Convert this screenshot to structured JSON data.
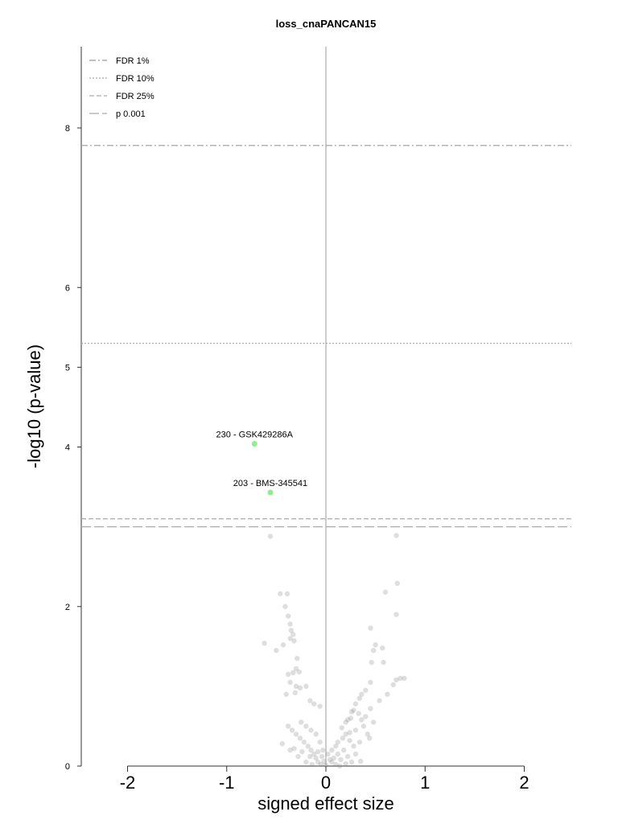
{
  "chart_data": {
    "type": "scatter",
    "title": "loss_cnaPANCAN15",
    "xlabel": "signed effect size",
    "ylabel": "-log10 (p-value)",
    "xlim": [
      -2.5,
      2.5
    ],
    "ylim": [
      0,
      9
    ],
    "xticks": [
      -2,
      -1,
      0,
      1,
      2
    ],
    "xtick_labels": [
      "-2",
      "-1",
      "0",
      "1",
      "2"
    ],
    "yticks": [
      0,
      2,
      4,
      5,
      6,
      8
    ],
    "ytick_labels": [
      "0",
      "2",
      "4",
      "5",
      "6",
      "8"
    ],
    "zero_line": 0,
    "legend_position": "top-left",
    "thresholds": [
      {
        "label": "FDR 1%",
        "y": 7.78,
        "dash": "8,3,2,3",
        "color": "#999999"
      },
      {
        "label": "FDR 10%",
        "y": 5.3,
        "dash": "2,2",
        "color": "#aaaaaa"
      },
      {
        "label": "FDR 25%",
        "y": 3.1,
        "dash": "6,3",
        "color": "#aaaaaa"
      },
      {
        "label": "p 0.001",
        "y": 3.0,
        "dash": "12,4",
        "color": "#aaaaaa"
      }
    ],
    "highlighted_points": [
      {
        "x": -0.72,
        "y": 4.04,
        "label": "230 - GSK429286A",
        "color": "#90ee90"
      },
      {
        "x": -0.56,
        "y": 3.43,
        "label": "203 - BMS-345541",
        "color": "#90ee90"
      }
    ],
    "background_points": [
      [
        -0.56,
        2.88
      ],
      [
        0.71,
        2.89
      ],
      [
        0.72,
        2.29
      ],
      [
        0.6,
        2.18
      ],
      [
        0.71,
        1.9
      ],
      [
        -0.46,
        2.16
      ],
      [
        -0.39,
        2.16
      ],
      [
        -0.41,
        2.0
      ],
      [
        -0.38,
        1.88
      ],
      [
        -0.36,
        1.78
      ],
      [
        -0.35,
        1.7
      ],
      [
        -0.33,
        1.65
      ],
      [
        -0.36,
        1.6
      ],
      [
        -0.32,
        1.57
      ],
      [
        -0.43,
        1.52
      ],
      [
        -0.62,
        1.54
      ],
      [
        -0.5,
        1.45
      ],
      [
        -0.29,
        1.35
      ],
      [
        -0.3,
        1.22
      ],
      [
        -0.27,
        1.18
      ],
      [
        -0.33,
        1.17
      ],
      [
        -0.38,
        1.15
      ],
      [
        -0.36,
        1.05
      ],
      [
        -0.3,
        1.0
      ],
      [
        -0.26,
        0.98
      ],
      [
        -0.4,
        0.9
      ],
      [
        -0.31,
        0.92
      ],
      [
        -0.2,
        1.0
      ],
      [
        -0.16,
        0.82
      ],
      [
        -0.12,
        0.78
      ],
      [
        -0.06,
        0.75
      ],
      [
        0.45,
        1.73
      ],
      [
        0.5,
        1.52
      ],
      [
        0.48,
        1.45
      ],
      [
        0.57,
        1.48
      ],
      [
        0.46,
        1.3
      ],
      [
        0.58,
        1.3
      ],
      [
        0.71,
        1.08
      ],
      [
        0.75,
        1.1
      ],
      [
        0.79,
        1.1
      ],
      [
        0.68,
        1.02
      ],
      [
        0.45,
        1.05
      ],
      [
        0.4,
        0.95
      ],
      [
        0.36,
        0.9
      ],
      [
        0.34,
        0.85
      ],
      [
        0.62,
        0.9
      ],
      [
        0.54,
        0.82
      ],
      [
        0.3,
        0.78
      ],
      [
        0.28,
        0.7
      ],
      [
        0.33,
        0.66
      ],
      [
        0.25,
        0.6
      ],
      [
        0.22,
        0.58
      ],
      [
        0.4,
        0.62
      ],
      [
        0.45,
        0.72
      ],
      [
        0.38,
        0.5
      ],
      [
        0.3,
        0.45
      ],
      [
        0.2,
        0.4
      ],
      [
        0.17,
        0.35
      ],
      [
        0.24,
        0.32
      ],
      [
        0.28,
        0.25
      ],
      [
        0.18,
        0.2
      ],
      [
        0.12,
        0.15
      ],
      [
        0.08,
        0.1
      ],
      [
        0.06,
        0.05
      ],
      [
        0.1,
        0.02
      ],
      [
        0.15,
        0.08
      ],
      [
        0.22,
        0.12
      ],
      [
        0.26,
        0.05
      ],
      [
        0.3,
        0.15
      ],
      [
        0.34,
        0.3
      ],
      [
        0.42,
        0.4
      ],
      [
        -0.05,
        0.02
      ],
      [
        -0.08,
        0.05
      ],
      [
        -0.1,
        0.1
      ],
      [
        -0.12,
        0.15
      ],
      [
        -0.15,
        0.2
      ],
      [
        -0.18,
        0.25
      ],
      [
        -0.22,
        0.3
      ],
      [
        -0.26,
        0.35
      ],
      [
        -0.3,
        0.4
      ],
      [
        -0.34,
        0.45
      ],
      [
        -0.38,
        0.5
      ],
      [
        -0.25,
        0.55
      ],
      [
        -0.2,
        0.5
      ],
      [
        -0.15,
        0.45
      ],
      [
        -0.1,
        0.4
      ],
      [
        -0.06,
        0.3
      ],
      [
        -0.03,
        0.2
      ],
      [
        0.02,
        0.15
      ],
      [
        0.04,
        0.08
      ],
      [
        -0.02,
        0.06
      ],
      [
        0.0,
        0.01
      ],
      [
        -0.28,
        0.12
      ],
      [
        -0.36,
        0.2
      ],
      [
        -0.44,
        0.28
      ],
      [
        -0.2,
        0.05
      ],
      [
        -0.14,
        0.02
      ],
      [
        0.14,
        0.0
      ],
      [
        0.2,
        0.03
      ],
      [
        0.35,
        0.06
      ],
      [
        -0.32,
        0.22
      ],
      [
        -0.24,
        0.18
      ],
      [
        -0.16,
        0.12
      ],
      [
        0.1,
        0.25
      ],
      [
        0.16,
        0.48
      ],
      [
        0.2,
        0.55
      ],
      [
        0.26,
        0.68
      ],
      [
        0.36,
        0.58
      ],
      [
        0.44,
        0.35
      ],
      [
        0.48,
        0.55
      ],
      [
        -0.08,
        0.18
      ],
      [
        -0.04,
        0.12
      ],
      [
        0.06,
        0.2
      ],
      [
        0.12,
        0.3
      ],
      [
        0.24,
        0.42
      ]
    ]
  }
}
